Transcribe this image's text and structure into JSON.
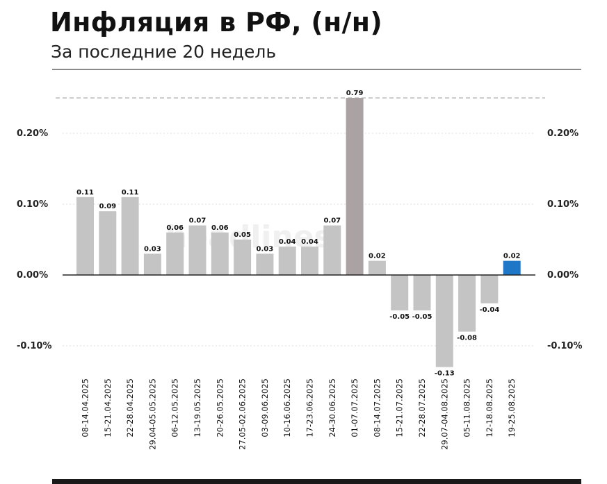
{
  "header": {
    "title": "Инфляция в РФ, (н/н)",
    "subtitle": "За последние 20 недель"
  },
  "watermark": "headlines",
  "colors": {
    "bar_default": "#c4c4c4",
    "bar_highlight_tall": "#aba3a3",
    "bar_latest": "#1f77c8",
    "zero_line": "#222222",
    "grid": "#dddddd",
    "cap_line": "#9a9a9a"
  },
  "chart_data": {
    "type": "bar",
    "title": "Инфляция в РФ, (н/н)",
    "subtitle": "За последние 20 недель",
    "y_unit": "%",
    "ylim": [
      -0.13,
      0.25
    ],
    "y_ticks": [
      0.2,
      0.1,
      0.0,
      -0.1
    ],
    "y_tick_labels": [
      "0.20%",
      "0.10%",
      "0.00%",
      "-0.10%"
    ],
    "grid": true,
    "axis_cap_note": "bar 01-07.07.2025 (0.79) is truncated at 0.25 (dashed line)",
    "categories": [
      "08-14.04.2025",
      "15-21.04.2025",
      "22-28.04.2025",
      "29.04-05.05.2025",
      "06-12.05.2025",
      "13-19.05.2025",
      "20-26.05.2025",
      "27.05-02.06.2025",
      "03-09.06.2025",
      "10-16.06.2025",
      "17-23.06.2025",
      "24-30.06.2025",
      "01-07.07.2025",
      "08-14.07.2025",
      "15-21.07.2025",
      "22-28.07.2025",
      "29.07-04.08.2025",
      "05-11.08.2025",
      "12-18.08.2025",
      "19-25.08.2025"
    ],
    "values": [
      0.11,
      0.09,
      0.11,
      0.03,
      0.06,
      0.07,
      0.06,
      0.05,
      0.03,
      0.04,
      0.04,
      0.07,
      0.79,
      0.02,
      -0.05,
      -0.05,
      -0.13,
      -0.08,
      -0.04,
      0.02
    ],
    "value_labels": [
      "0.11",
      "0.09",
      "0.11",
      "0.03",
      "0.06",
      "0.07",
      "0.06",
      "0.05",
      "0.03",
      "0.04",
      "0.04",
      "0.07",
      "0.79",
      "0.02",
      "-0.05",
      "-0.05",
      "-0.13",
      "-0.08",
      "-0.04",
      "0.02"
    ],
    "truncated_index": 12,
    "highlight_index": 19
  }
}
